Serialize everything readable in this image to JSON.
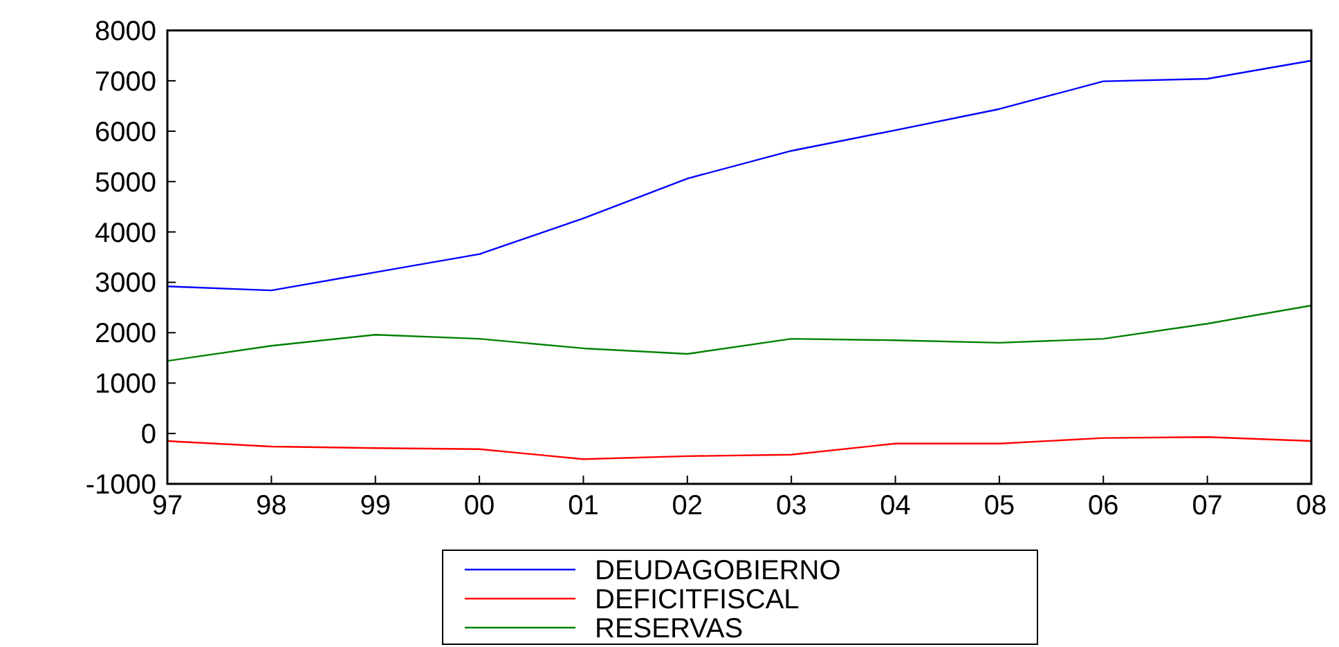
{
  "chart_data": {
    "type": "line",
    "categories": [
      "97",
      "98",
      "99",
      "00",
      "01",
      "02",
      "03",
      "04",
      "05",
      "06",
      "07",
      "08"
    ],
    "ylim": [
      -1000,
      8000
    ],
    "yticks": [
      -1000,
      0,
      1000,
      2000,
      3000,
      4000,
      5000,
      6000,
      7000,
      8000
    ],
    "grid": false,
    "legend": "bottom",
    "marker": "none",
    "line_style": "solid",
    "series": [
      {
        "name": "DEUDAGOBIERNO",
        "color": "#0000ff",
        "values": [
          2920,
          2840,
          3200,
          3560,
          4270,
          5060,
          5610,
          6020,
          6440,
          6990,
          7040,
          7400
        ]
      },
      {
        "name": "DEFICITFISCAL",
        "color": "#ff0000",
        "values": [
          -150,
          -260,
          -290,
          -310,
          -510,
          -450,
          -420,
          -200,
          -200,
          -90,
          -70,
          -150
        ]
      },
      {
        "name": "RESERVAS",
        "color": "#008000",
        "values": [
          1440,
          1740,
          1960,
          1880,
          1690,
          1580,
          1880,
          1850,
          1800,
          1880,
          2180,
          2540
        ]
      }
    ]
  }
}
